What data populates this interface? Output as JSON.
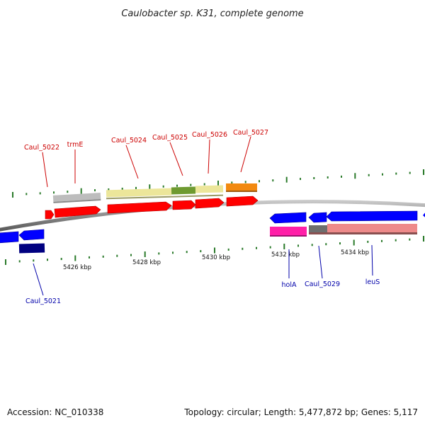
{
  "title": "Caulobacter sp. K31, complete genome",
  "footer": {
    "accession": "Accession: NC_010338",
    "topology": "Topology: circular; Length: 5,477,872 bp; Genes: 5,117"
  },
  "colors": {
    "forward_label": "#cc0000",
    "reverse_label": "#0000aa",
    "tick": "#2a7a2a",
    "backbone": "#808080"
  },
  "scale_labels": [
    "5426 kbp",
    "5428 kbp",
    "5430 kbp",
    "5432 kbp",
    "5434 kbp"
  ],
  "gene_labels": {
    "forward": [
      "Caul_5022",
      "trmE",
      "Caul_5024",
      "Caul_5025",
      "Caul_5026",
      "Caul_5027"
    ],
    "reverse": [
      "Caul_5021",
      "holA",
      "Caul_5029",
      "leuS"
    ]
  }
}
